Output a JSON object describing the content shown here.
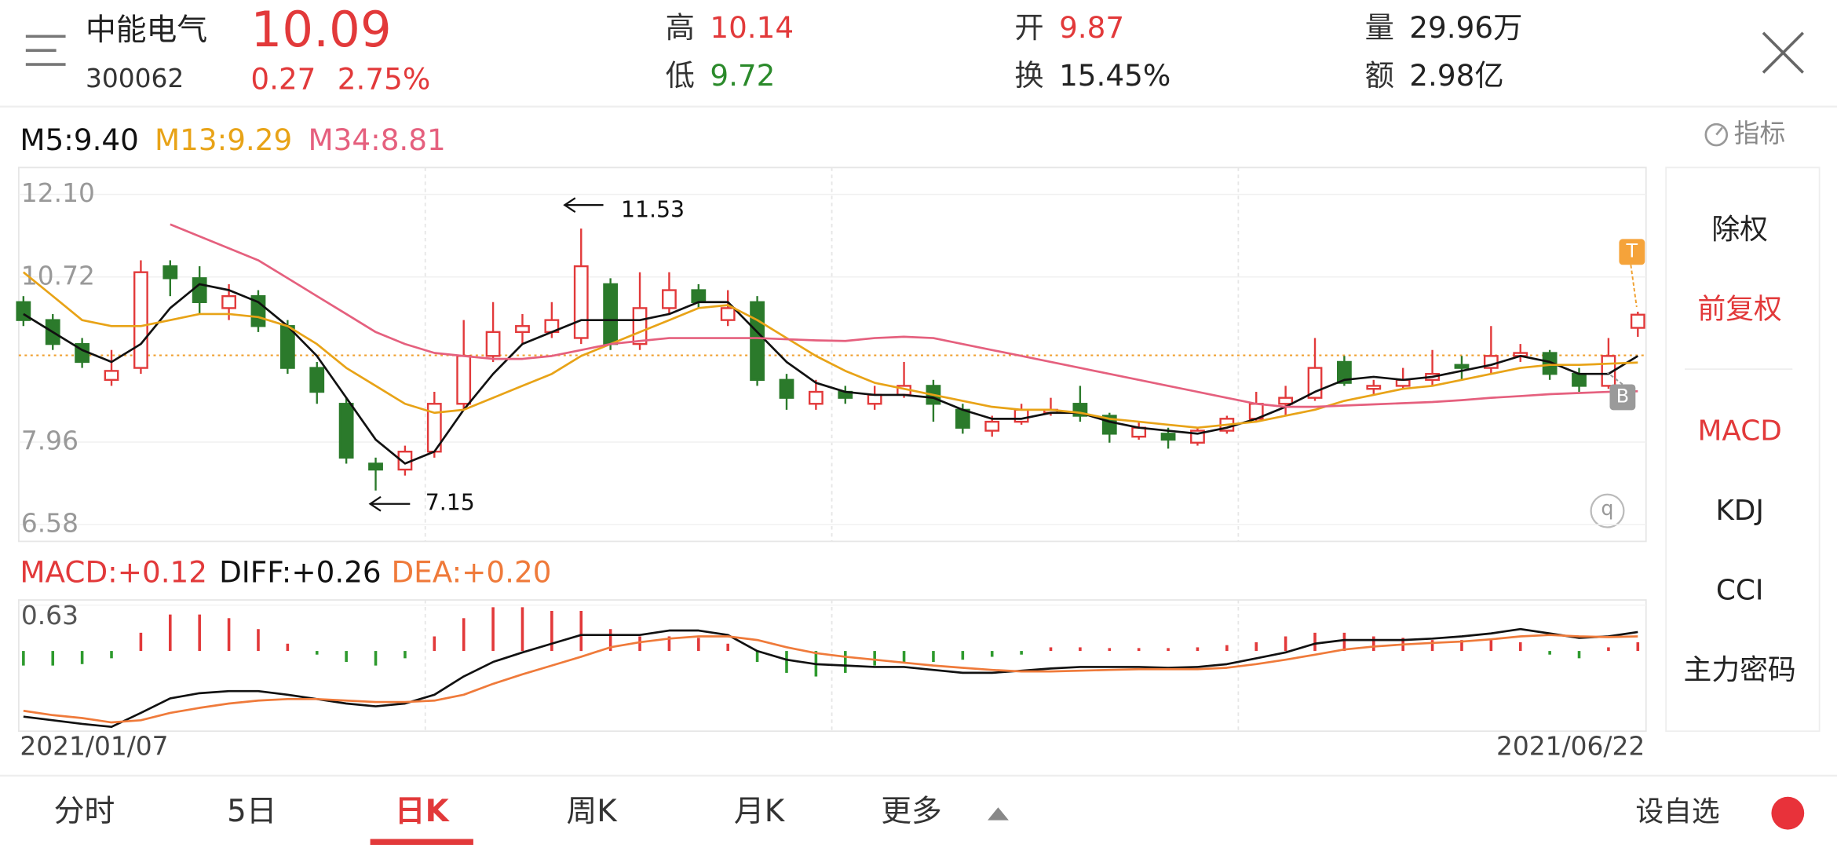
{
  "header": {
    "name": "中能电气",
    "code": "300062",
    "price": "10.09",
    "change": "0.27",
    "change_pct": "2.75%",
    "stats": [
      {
        "label": "高",
        "value": "10.14",
        "color": "#e2393a"
      },
      {
        "label": "低",
        "value": "9.72",
        "color": "#2b8a2b"
      },
      {
        "label": "开",
        "value": "9.87",
        "color": "#e2393a"
      },
      {
        "label": "换",
        "value": "15.45%",
        "color": "#222222"
      },
      {
        "label": "量",
        "value": "29.96万",
        "color": "#222222"
      },
      {
        "label": "额",
        "value": "2.98亿",
        "color": "#222222"
      }
    ]
  },
  "indicator_button": "指标",
  "side_menu": [
    {
      "label": "除权"
    },
    {
      "label": "前复权",
      "active": true
    },
    {
      "label": "MACD",
      "active": true
    },
    {
      "label": "KDJ"
    },
    {
      "label": "CCI"
    },
    {
      "label": "主力密码"
    }
  ],
  "tabs": [
    {
      "label": "分时"
    },
    {
      "label": "5日"
    },
    {
      "label": "日K",
      "active": true
    },
    {
      "label": "周K"
    },
    {
      "label": "月K"
    },
    {
      "label": "更多"
    }
  ],
  "watchlist_button": "设自选",
  "chart_data": [
    {
      "type": "candlestick",
      "up_color": "#e2393a",
      "down_color": "#2b7a2b",
      "ylim": [
        6.3,
        12.55
      ],
      "yticks": [
        {
          "value": 12.1,
          "label": "12.10"
        },
        10.72,
        7.96,
        6.58
      ],
      "ohlc": [
        [
          10.3,
          10.4,
          9.9,
          10.0
        ],
        [
          10.0,
          10.1,
          9.5,
          9.6
        ],
        [
          9.6,
          9.7,
          9.2,
          9.3
        ],
        [
          9.0,
          9.5,
          8.9,
          9.15
        ],
        [
          9.2,
          11.0,
          9.1,
          10.8
        ],
        [
          10.9,
          11.0,
          10.4,
          10.7
        ],
        [
          10.7,
          10.9,
          10.1,
          10.3
        ],
        [
          10.2,
          10.6,
          10.0,
          10.4
        ],
        [
          10.4,
          10.5,
          9.8,
          9.9
        ],
        [
          9.9,
          10.0,
          9.1,
          9.2
        ],
        [
          9.2,
          9.3,
          8.6,
          8.8
        ],
        [
          8.6,
          8.7,
          7.6,
          7.7
        ],
        [
          7.6,
          7.7,
          7.15,
          7.5
        ],
        [
          7.5,
          7.9,
          7.4,
          7.8
        ],
        [
          7.8,
          8.8,
          7.7,
          8.6
        ],
        [
          8.6,
          10.0,
          8.5,
          9.4
        ],
        [
          9.4,
          10.3,
          9.3,
          9.8
        ],
        [
          9.8,
          10.1,
          9.6,
          9.9
        ],
        [
          9.8,
          10.3,
          9.7,
          10.0
        ],
        [
          9.7,
          11.53,
          9.6,
          10.9
        ],
        [
          10.6,
          10.7,
          9.5,
          9.6
        ],
        [
          9.6,
          10.8,
          9.5,
          10.2
        ],
        [
          10.2,
          10.8,
          10.1,
          10.5
        ],
        [
          10.5,
          10.6,
          10.2,
          10.3
        ],
        [
          10.0,
          10.5,
          9.9,
          10.2
        ],
        [
          10.3,
          10.4,
          8.9,
          9.0
        ],
        [
          9.0,
          9.1,
          8.5,
          8.7
        ],
        [
          8.6,
          9.0,
          8.5,
          8.8
        ],
        [
          8.8,
          8.9,
          8.6,
          8.7
        ],
        [
          8.6,
          8.9,
          8.5,
          8.75
        ],
        [
          8.75,
          9.3,
          8.7,
          8.9
        ],
        [
          8.9,
          9.0,
          8.3,
          8.6
        ],
        [
          8.5,
          8.6,
          8.1,
          8.2
        ],
        [
          8.15,
          8.4,
          8.05,
          8.3
        ],
        [
          8.3,
          8.6,
          8.25,
          8.5
        ],
        [
          8.45,
          8.7,
          8.4,
          8.5
        ],
        [
          8.6,
          8.9,
          8.3,
          8.4
        ],
        [
          8.4,
          8.45,
          7.95,
          8.1
        ],
        [
          8.05,
          8.3,
          8.0,
          8.2
        ],
        [
          8.1,
          8.2,
          7.85,
          8.0
        ],
        [
          7.95,
          8.2,
          7.9,
          8.15
        ],
        [
          8.15,
          8.4,
          8.1,
          8.35
        ],
        [
          8.35,
          8.8,
          8.3,
          8.6
        ],
        [
          8.6,
          8.9,
          8.4,
          8.7
        ],
        [
          8.7,
          9.7,
          8.65,
          9.2
        ],
        [
          9.3,
          9.4,
          8.9,
          8.95
        ],
        [
          8.85,
          9.0,
          8.75,
          8.9
        ],
        [
          8.9,
          9.2,
          8.85,
          9.0
        ],
        [
          9.0,
          9.5,
          8.9,
          9.1
        ],
        [
          9.25,
          9.4,
          9.0,
          9.2
        ],
        [
          9.2,
          9.9,
          9.1,
          9.4
        ],
        [
          9.4,
          9.6,
          9.3,
          9.45
        ],
        [
          9.45,
          9.5,
          9.0,
          9.1
        ],
        [
          9.1,
          9.2,
          8.8,
          8.9
        ],
        [
          8.9,
          9.7,
          8.85,
          9.4
        ],
        [
          9.87,
          10.14,
          9.72,
          10.09
        ]
      ],
      "series": [
        {
          "name": "M5:9.40",
          "color": "#111111",
          "values": [
            10.1,
            9.8,
            9.5,
            9.3,
            9.6,
            10.2,
            10.6,
            10.5,
            10.3,
            9.9,
            9.4,
            8.7,
            8.0,
            7.6,
            7.8,
            8.5,
            9.1,
            9.6,
            9.8,
            10.0,
            10.0,
            10.0,
            10.1,
            10.3,
            10.3,
            9.8,
            9.3,
            8.95,
            8.8,
            8.75,
            8.75,
            8.7,
            8.5,
            8.35,
            8.35,
            8.45,
            8.45,
            8.3,
            8.2,
            8.15,
            8.1,
            8.2,
            8.35,
            8.55,
            8.8,
            9.0,
            9.05,
            9.0,
            9.05,
            9.15,
            9.25,
            9.4,
            9.3,
            9.1,
            9.1,
            9.4
          ]
        },
        {
          "name": "M13:9.29",
          "color": "#e8a317",
          "values": [
            10.8,
            10.4,
            10.0,
            9.9,
            9.9,
            10.0,
            10.1,
            10.1,
            10.05,
            9.9,
            9.6,
            9.2,
            8.9,
            8.6,
            8.45,
            8.5,
            8.7,
            8.9,
            9.1,
            9.4,
            9.6,
            9.8,
            10.0,
            10.2,
            10.25,
            10.0,
            9.7,
            9.4,
            9.15,
            8.95,
            8.85,
            8.75,
            8.65,
            8.55,
            8.5,
            8.5,
            8.45,
            8.35,
            8.3,
            8.25,
            8.2,
            8.25,
            8.3,
            8.4,
            8.5,
            8.65,
            8.75,
            8.85,
            8.9,
            9.0,
            9.1,
            9.2,
            9.25,
            9.25,
            9.27,
            9.29
          ]
        },
        {
          "name": "M34:8.81",
          "color": "#e5607e",
          "values": [
            null,
            null,
            null,
            null,
            null,
            11.6,
            11.4,
            11.2,
            11.0,
            10.7,
            10.4,
            10.1,
            9.8,
            9.6,
            9.45,
            9.4,
            9.35,
            9.35,
            9.4,
            9.5,
            9.6,
            9.65,
            9.7,
            9.7,
            9.7,
            9.7,
            9.68,
            9.66,
            9.65,
            9.7,
            9.72,
            9.7,
            9.6,
            9.5,
            9.4,
            9.3,
            9.2,
            9.1,
            9.0,
            8.9,
            8.8,
            8.7,
            8.6,
            8.55,
            8.55,
            8.57,
            8.59,
            8.61,
            8.63,
            8.66,
            8.7,
            8.73,
            8.76,
            8.78,
            8.8,
            8.81
          ]
        }
      ],
      "ref_line": 9.41,
      "annotations": [
        {
          "label": "11.53"
        },
        {
          "label": "7.15"
        }
      ],
      "markers": [
        "T",
        "B"
      ]
    },
    {
      "type": "macd",
      "ylim": [
        -1.1,
        0.7
      ],
      "yticks": [
        0.63
      ],
      "histogram": {
        "name": "MACD:+0.12",
        "color": "#e2393a",
        "up_color": "#e2393a",
        "down_color": "#2e9a2e",
        "values": [
          -0.2,
          -0.2,
          -0.18,
          -0.1,
          0.25,
          0.5,
          0.5,
          0.45,
          0.3,
          0.1,
          -0.05,
          -0.15,
          -0.2,
          -0.1,
          0.2,
          0.45,
          0.6,
          0.6,
          0.55,
          0.55,
          0.3,
          0.2,
          0.2,
          0.18,
          0.1,
          -0.15,
          -0.3,
          -0.35,
          -0.3,
          -0.2,
          -0.15,
          -0.15,
          -0.12,
          -0.08,
          -0.05,
          0.05,
          0.05,
          0.04,
          0.04,
          0.04,
          0.05,
          0.08,
          0.12,
          0.2,
          0.25,
          0.25,
          0.2,
          0.18,
          0.15,
          0.15,
          0.15,
          0.12,
          -0.05,
          -0.1,
          0.05,
          0.12
        ]
      },
      "series": [
        {
          "name": "DIFF:+0.26",
          "color": "#111111",
          "values": [
            -0.9,
            -0.95,
            -1.0,
            -1.04,
            -0.85,
            -0.65,
            -0.58,
            -0.55,
            -0.55,
            -0.6,
            -0.66,
            -0.72,
            -0.76,
            -0.72,
            -0.6,
            -0.35,
            -0.15,
            -0.02,
            0.1,
            0.22,
            0.22,
            0.22,
            0.28,
            0.28,
            0.22,
            0.0,
            -0.12,
            -0.18,
            -0.2,
            -0.22,
            -0.22,
            -0.26,
            -0.3,
            -0.3,
            -0.27,
            -0.24,
            -0.22,
            -0.22,
            -0.22,
            -0.23,
            -0.22,
            -0.18,
            -0.1,
            -0.02,
            0.1,
            0.15,
            0.15,
            0.15,
            0.17,
            0.2,
            0.24,
            0.3,
            0.24,
            0.18,
            0.2,
            0.26
          ]
        },
        {
          "name": "DEA:+0.20",
          "color": "#ef7a3a",
          "values": [
            -0.82,
            -0.88,
            -0.92,
            -0.98,
            -0.95,
            -0.85,
            -0.78,
            -0.72,
            -0.68,
            -0.66,
            -0.66,
            -0.68,
            -0.7,
            -0.7,
            -0.68,
            -0.6,
            -0.45,
            -0.32,
            -0.2,
            -0.08,
            0.05,
            0.12,
            0.17,
            0.2,
            0.2,
            0.15,
            0.05,
            -0.03,
            -0.08,
            -0.12,
            -0.16,
            -0.2,
            -0.23,
            -0.26,
            -0.28,
            -0.28,
            -0.27,
            -0.26,
            -0.25,
            -0.25,
            -0.25,
            -0.23,
            -0.18,
            -0.12,
            -0.05,
            0.02,
            0.06,
            0.09,
            0.11,
            0.13,
            0.16,
            0.2,
            0.22,
            0.2,
            0.19,
            0.2
          ]
        }
      ],
      "x_labels": [
        "2021/01/07",
        "2021/06/22"
      ]
    }
  ]
}
